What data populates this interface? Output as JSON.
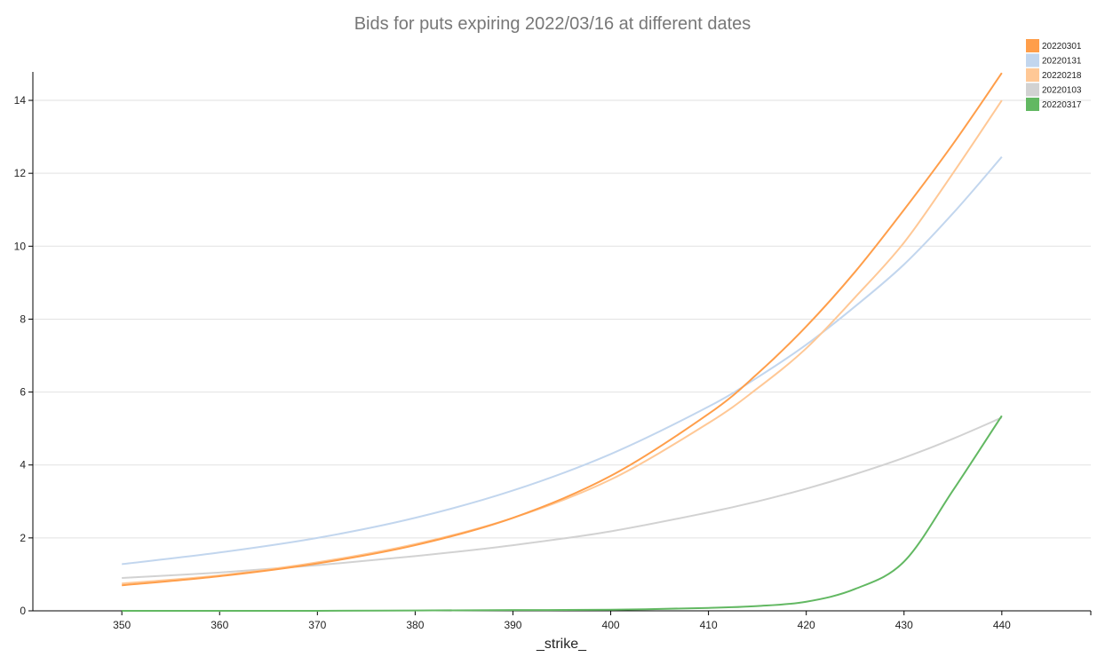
{
  "chart_data": {
    "type": "line",
    "title": "Bids for puts expiring 2022/03/16 at different dates",
    "xlabel": "_strike_",
    "ylabel": "",
    "xlim": [
      340.9,
      449.1
    ],
    "ylim": [
      0,
      14.78
    ],
    "grid": "horizontal",
    "legend_position": "top-right",
    "xticks": [
      350,
      360,
      370,
      380,
      390,
      400,
      410,
      420,
      430,
      440
    ],
    "yticks": [
      0,
      2,
      4,
      6,
      8,
      10,
      12,
      14
    ],
    "x": [
      350,
      360,
      370,
      380,
      390,
      400,
      410,
      415,
      420,
      425,
      430,
      435,
      440
    ],
    "series": [
      {
        "name": "20220301",
        "color": "#ff9e4a",
        "values": [
          0.7,
          0.95,
          1.3,
          1.8,
          2.55,
          3.7,
          5.4,
          6.5,
          7.8,
          9.3,
          11.0,
          12.8,
          14.75
        ]
      },
      {
        "name": "20220131",
        "color": "#c2d6ee",
        "values": [
          1.28,
          1.6,
          2.0,
          2.55,
          3.3,
          4.3,
          5.6,
          6.4,
          7.3,
          8.35,
          9.5,
          10.9,
          12.45
        ]
      },
      {
        "name": "20220218",
        "color": "#ffc896",
        "values": [
          0.75,
          0.97,
          1.33,
          1.83,
          2.55,
          3.6,
          5.15,
          6.1,
          7.2,
          8.6,
          10.1,
          12.0,
          14.0
        ]
      },
      {
        "name": "20220103",
        "color": "#d2d2d2",
        "values": [
          0.9,
          1.05,
          1.25,
          1.5,
          1.8,
          2.18,
          2.7,
          3.0,
          3.35,
          3.75,
          4.2,
          4.72,
          5.3
        ]
      },
      {
        "name": "20220317",
        "color": "#62b862",
        "values": [
          0,
          0,
          0,
          0.01,
          0.02,
          0.03,
          0.08,
          0.13,
          0.25,
          0.6,
          1.35,
          3.3,
          5.35
        ]
      }
    ]
  }
}
